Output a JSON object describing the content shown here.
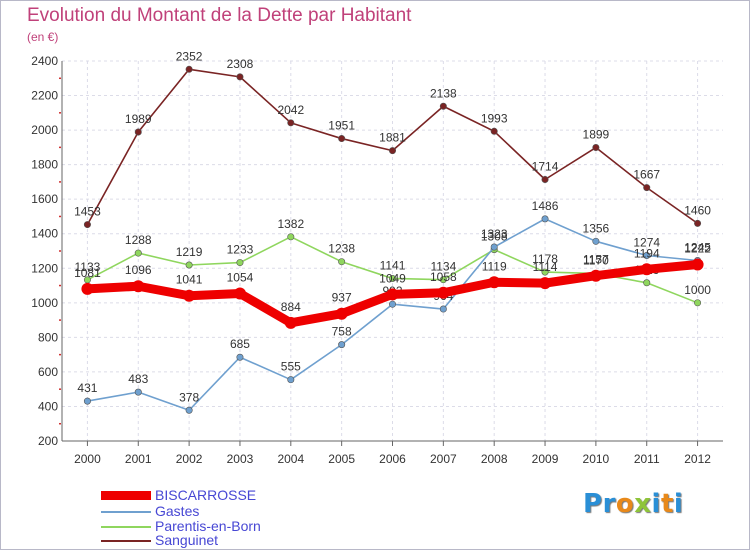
{
  "title": "Evolution du Montant de la Dette par Habitant",
  "subtitle": "(en €)",
  "logo": {
    "text": "Proxiti",
    "letters": [
      {
        "ch": "P",
        "color": "#2a8fd6"
      },
      {
        "ch": "r",
        "color": "#2a8fd6"
      },
      {
        "ch": "o",
        "color": "#e8891a"
      },
      {
        "ch": "x",
        "color": "#8fc43a"
      },
      {
        "ch": "i",
        "color": "#2a8fd6"
      },
      {
        "ch": "t",
        "color": "#e8891a"
      },
      {
        "ch": "i",
        "color": "#2a8fd6"
      }
    ]
  },
  "chart_data": {
    "type": "line",
    "x": [
      "2000",
      "2001",
      "2002",
      "2003",
      "2004",
      "2005",
      "2006",
      "2007",
      "2008",
      "2009",
      "2010",
      "2011",
      "2012"
    ],
    "ylim": [
      200,
      2400
    ],
    "yticks": [
      "200",
      "400",
      "600",
      "800",
      "1000",
      "1200",
      "1400",
      "1600",
      "1800",
      "2000",
      "2200",
      "2400"
    ],
    "grid": true,
    "legend_position": "bottom-left",
    "series": [
      {
        "name": "Sanguinet",
        "color": "#7a2424",
        "values": [
          1453,
          1989,
          2352,
          2308,
          2042,
          1951,
          1881,
          2138,
          1993,
          1714,
          1899,
          1667,
          1460
        ],
        "labels": [
          "1453",
          "1989",
          "2352",
          "2308",
          "2042",
          "1951",
          "1881",
          "2138",
          "1993",
          "1714",
          "1899",
          "1667",
          "1460"
        ]
      },
      {
        "name": "Parentis-en-Born",
        "color": "#8fd65e",
        "values": [
          1133,
          1288,
          1219,
          1233,
          1382,
          1238,
          1141,
          1134,
          1308,
          1178,
          1170,
          1116,
          1000
        ],
        "labels": [
          "1133",
          "1288",
          "1219",
          "1233",
          "1382",
          "1238",
          "1141",
          "1134",
          "1308",
          "1178",
          "1170",
          "1116",
          "1000"
        ]
      },
      {
        "name": "Gastes",
        "color": "#6fa0cf",
        "values": [
          431,
          483,
          378,
          685,
          555,
          758,
          992,
          964,
          1323,
          1486,
          1356,
          1274,
          1245
        ],
        "labels": [
          "431",
          "483",
          "378",
          "685",
          "555",
          "758",
          "992",
          "964",
          "1323",
          "1486",
          "1356",
          "1274",
          "1245"
        ]
      },
      {
        "name": "BISCARROSSE",
        "color": "#ee0000",
        "values": [
          1081,
          1096,
          1041,
          1054,
          884,
          937,
          1049,
          1058,
          1119,
          1114,
          1157,
          1194,
          1222
        ],
        "labels": [
          "1081",
          "1096",
          "1041",
          "1054",
          "884",
          "937",
          "1049",
          "1058",
          "1119",
          "1114",
          "1157",
          "1194",
          "1222"
        ]
      }
    ]
  },
  "legend": [
    {
      "label": "BISCARROSSE",
      "color": "#ee0000"
    },
    {
      "label": "Gastes",
      "color": "#6fa0cf"
    },
    {
      "label": "Parentis-en-Born",
      "color": "#8fd65e"
    },
    {
      "label": "Sanguinet",
      "color": "#7a2424"
    }
  ]
}
